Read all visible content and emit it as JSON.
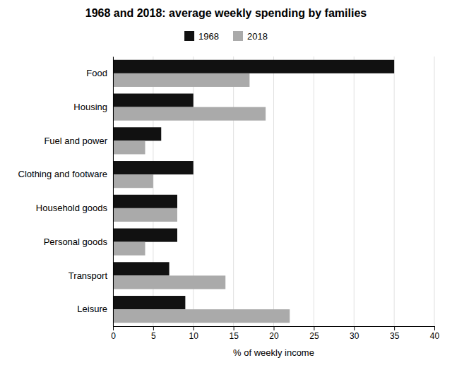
{
  "chart_data": {
    "type": "bar",
    "orientation": "horizontal",
    "title": "1968 and 2018: average weekly spending by families",
    "categories": [
      "Food",
      "Housing",
      "Fuel and power",
      "Clothing and footware",
      "Household goods",
      "Personal goods",
      "Transport",
      "Leisure"
    ],
    "series": [
      {
        "name": "1968",
        "color": "#111111",
        "values": [
          35,
          10,
          6,
          10,
          8,
          8,
          7,
          9
        ]
      },
      {
        "name": "2018",
        "color": "#aaaaaa",
        "values": [
          17,
          19,
          4,
          5,
          8,
          4,
          14,
          22
        ]
      }
    ],
    "xlabel": "% of weekly income",
    "xlim": [
      0,
      40
    ],
    "xticks": [
      0,
      5,
      10,
      15,
      20,
      25,
      30,
      35,
      40
    ],
    "grid": true,
    "legend": "top"
  }
}
